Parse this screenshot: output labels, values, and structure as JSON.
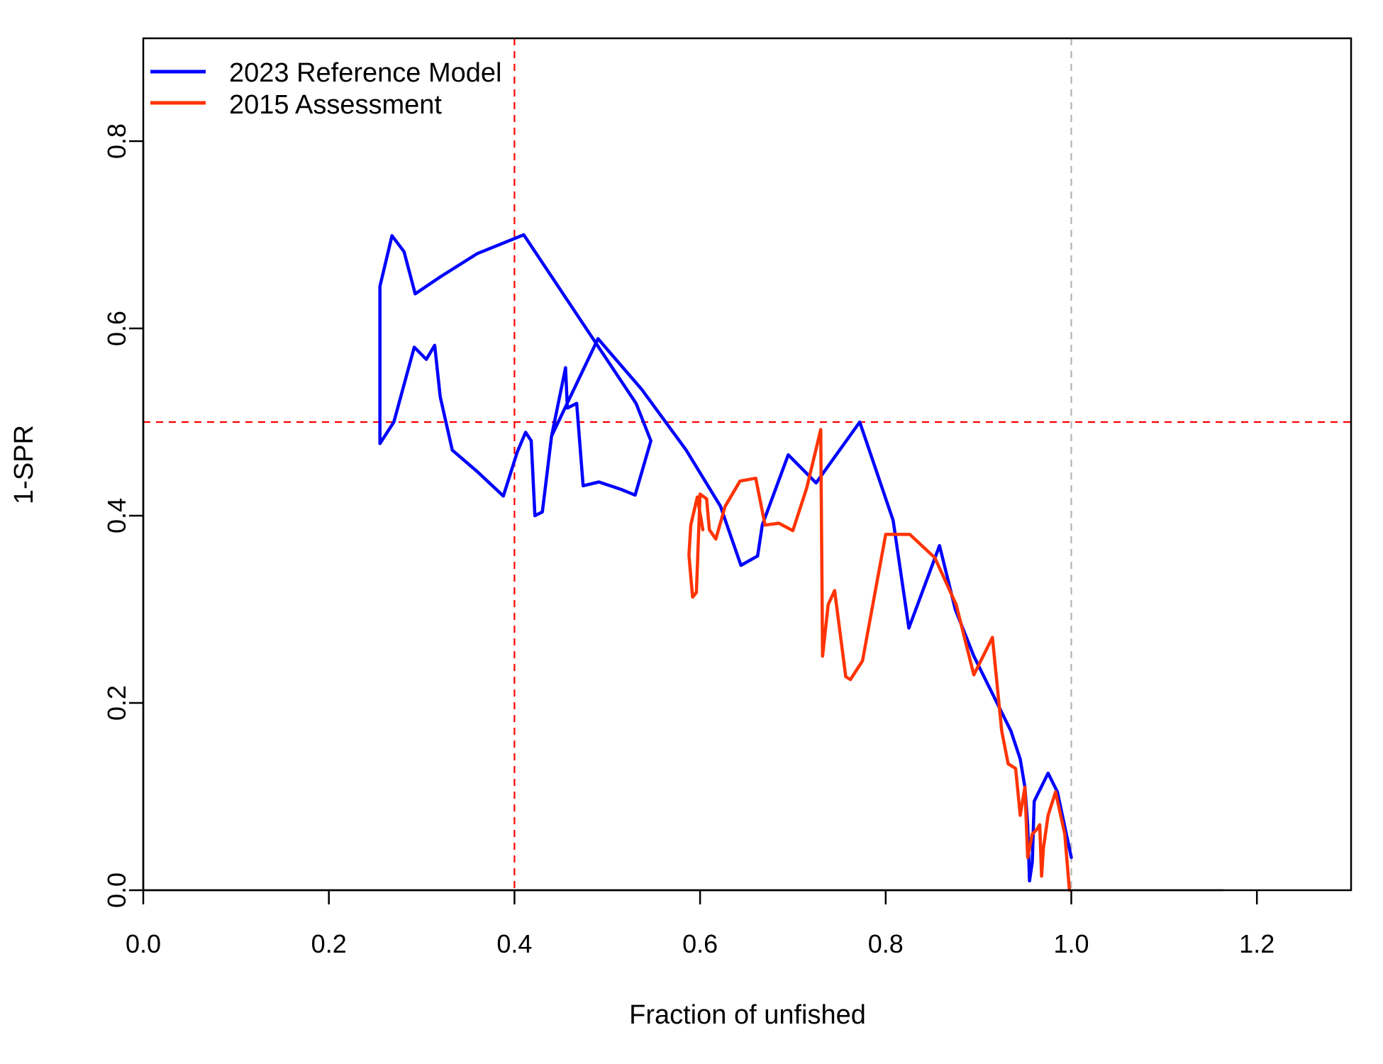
{
  "chart_data": {
    "type": "line",
    "title": "",
    "xlabel": "Fraction of unfished",
    "ylabel": "1-SPR",
    "xlim": [
      0.0,
      1.3
    ],
    "ylim": [
      0.0,
      0.91
    ],
    "x_ticks": [
      "0.0",
      "0.2",
      "0.4",
      "0.6",
      "0.8",
      "1.0",
      "1.2"
    ],
    "y_ticks": [
      "0.0",
      "0.2",
      "0.4",
      "0.6",
      "0.8"
    ],
    "grid": false,
    "legend_position": "top-left",
    "reference_lines": [
      {
        "orientation": "vertical",
        "value": 0.4,
        "color": "#ff0000",
        "style": "dashed"
      },
      {
        "orientation": "horizontal",
        "value": 0.5,
        "color": "#ff0000",
        "style": "dashed"
      },
      {
        "orientation": "vertical",
        "value": 1.0,
        "color": "#b3b3b3",
        "style": "dashed"
      }
    ],
    "series": [
      {
        "name": "2023 Reference Model",
        "color": "#0000ff",
        "points": [
          [
            1.0,
            0.035
          ],
          [
            0.985,
            0.105
          ],
          [
            0.975,
            0.125
          ],
          [
            0.96,
            0.095
          ],
          [
            0.958,
            0.03
          ],
          [
            0.955,
            0.01
          ],
          [
            0.953,
            0.07
          ],
          [
            0.95,
            0.11
          ],
          [
            0.945,
            0.14
          ],
          [
            0.935,
            0.17
          ],
          [
            0.92,
            0.2
          ],
          [
            0.895,
            0.25
          ],
          [
            0.875,
            0.3
          ],
          [
            0.858,
            0.368
          ],
          [
            0.825,
            0.28
          ],
          [
            0.808,
            0.395
          ],
          [
            0.772,
            0.5
          ],
          [
            0.725,
            0.435
          ],
          [
            0.695,
            0.465
          ],
          [
            0.667,
            0.39
          ],
          [
            0.662,
            0.357
          ],
          [
            0.644,
            0.347
          ],
          [
            0.622,
            0.41
          ],
          [
            0.585,
            0.47
          ],
          [
            0.537,
            0.535
          ],
          [
            0.49,
            0.589
          ],
          [
            0.44,
            0.485
          ],
          [
            0.455,
            0.558
          ],
          [
            0.457,
            0.515
          ],
          [
            0.467,
            0.52
          ],
          [
            0.474,
            0.432
          ],
          [
            0.491,
            0.436
          ],
          [
            0.515,
            0.428
          ],
          [
            0.53,
            0.422
          ],
          [
            0.547,
            0.48
          ],
          [
            0.531,
            0.52
          ],
          [
            0.41,
            0.7
          ],
          [
            0.36,
            0.68
          ],
          [
            0.32,
            0.655
          ],
          [
            0.293,
            0.637
          ],
          [
            0.281,
            0.682
          ],
          [
            0.268,
            0.699
          ],
          [
            0.255,
            0.645
          ],
          [
            0.255,
            0.477
          ],
          [
            0.27,
            0.5
          ],
          [
            0.292,
            0.58
          ],
          [
            0.305,
            0.567
          ],
          [
            0.314,
            0.582
          ],
          [
            0.32,
            0.527
          ],
          [
            0.333,
            0.47
          ],
          [
            0.36,
            0.447
          ],
          [
            0.388,
            0.421
          ],
          [
            0.403,
            0.468
          ],
          [
            0.412,
            0.489
          ],
          [
            0.418,
            0.48
          ],
          [
            0.422,
            0.4
          ],
          [
            0.43,
            0.404
          ],
          [
            0.44,
            0.485
          ],
          [
            0.49,
            0.589
          ]
        ]
      },
      {
        "name": "2015 Assessment",
        "color": "#ff3300",
        "points": [
          [
            0.998,
            0.0
          ],
          [
            0.993,
            0.06
          ],
          [
            0.983,
            0.105
          ],
          [
            0.975,
            0.08
          ],
          [
            0.97,
            0.045
          ],
          [
            0.968,
            0.015
          ],
          [
            0.966,
            0.07
          ],
          [
            0.963,
            0.065
          ],
          [
            0.958,
            0.06
          ],
          [
            0.953,
            0.035
          ],
          [
            0.95,
            0.11
          ],
          [
            0.945,
            0.08
          ],
          [
            0.94,
            0.13
          ],
          [
            0.932,
            0.135
          ],
          [
            0.925,
            0.17
          ],
          [
            0.915,
            0.27
          ],
          [
            0.895,
            0.23
          ],
          [
            0.876,
            0.305
          ],
          [
            0.853,
            0.355
          ],
          [
            0.826,
            0.38
          ],
          [
            0.8,
            0.38
          ],
          [
            0.775,
            0.245
          ],
          [
            0.762,
            0.225
          ],
          [
            0.757,
            0.228
          ],
          [
            0.745,
            0.32
          ],
          [
            0.738,
            0.305
          ],
          [
            0.732,
            0.25
          ],
          [
            0.73,
            0.492
          ],
          [
            0.715,
            0.43
          ],
          [
            0.7,
            0.384
          ],
          [
            0.685,
            0.392
          ],
          [
            0.67,
            0.39
          ],
          [
            0.66,
            0.44
          ],
          [
            0.643,
            0.437
          ],
          [
            0.627,
            0.41
          ],
          [
            0.617,
            0.375
          ],
          [
            0.61,
            0.385
          ],
          [
            0.607,
            0.418
          ],
          [
            0.6,
            0.423
          ],
          [
            0.596,
            0.318
          ],
          [
            0.592,
            0.313
          ],
          [
            0.59,
            0.335
          ],
          [
            0.588,
            0.358
          ],
          [
            0.59,
            0.39
          ],
          [
            0.597,
            0.42
          ],
          [
            0.603,
            0.385
          ]
        ]
      }
    ]
  }
}
